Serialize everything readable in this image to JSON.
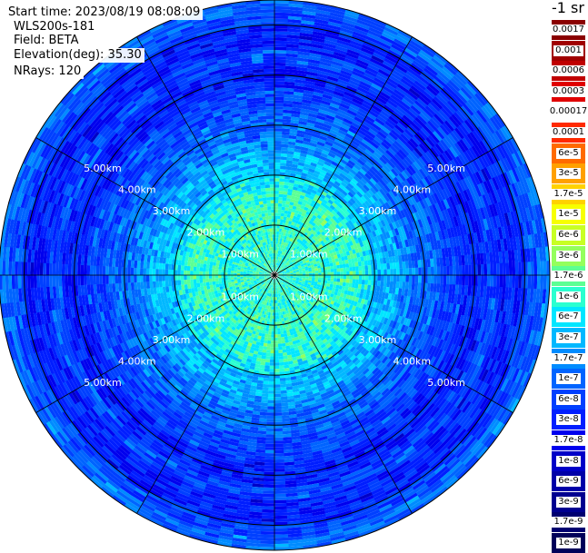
{
  "info": {
    "start_time": "Start time: 2023/08/19 08:08:09",
    "instrument": "WLS200s-181",
    "field": "Field: BETA",
    "elevation": "Elevation(deg): 35.30",
    "nrays": "NRays: 120"
  },
  "colorbar": {
    "unit": "-1 sr",
    "labels": [
      "0.0017",
      "0.001",
      "0.0006",
      "0.0003",
      "0.00017",
      "0.0001",
      "6e-5",
      "3e-5",
      "1.7e-5",
      "1e-5",
      "6e-6",
      "3e-6",
      "1.7e-6",
      "1e-6",
      "6e-7",
      "3e-7",
      "1.7e-7",
      "1e-7",
      "6e-8",
      "3e-8",
      "1.7e-8",
      "1e-8",
      "6e-9",
      "3e-9",
      "1.7e-9",
      "1e-9"
    ],
    "colors": [
      "#8a0000",
      "#a00000",
      "#c00000",
      "#e00000",
      "#ffffff",
      "#ff2a00",
      "#ff6a00",
      "#ffa000",
      "#ffd200",
      "#f7ff00",
      "#c8ff24",
      "#94ff5c",
      "#5cff94",
      "#2affd0",
      "#00e6ff",
      "#00b8ff",
      "#008cff",
      "#0064ff",
      "#0040ff",
      "#001eff",
      "#0000ee",
      "#0000c8",
      "#0000a8",
      "#000090",
      "#000070",
      "#00005a"
    ]
  },
  "chart_data": {
    "type": "heatmap",
    "projection": "polar-ppi",
    "field": "BETA",
    "elevation_deg": 35.3,
    "n_rays": 120,
    "range_unit": "km",
    "range_max_km": 5.5,
    "ring_labels": [
      "1.00km",
      "2.00km",
      "3.00km",
      "4.00km",
      "5.00km"
    ],
    "ring_ranges_km": [
      1,
      2,
      3,
      4,
      5
    ],
    "radial_bins_km": [
      0.25,
      0.5,
      0.75,
      1.0,
      1.25,
      1.5,
      1.75,
      2.0,
      2.25,
      2.5,
      2.75,
      3.0,
      3.25,
      3.5,
      3.75,
      4.0,
      4.25,
      4.5,
      4.75,
      5.0,
      5.25,
      5.5
    ],
    "typical_beta_by_bin": [
      1e-06,
      1e-06,
      1e-06,
      1e-06,
      1e-06,
      1e-06,
      1e-06,
      6e-07,
      3e-07,
      3e-07,
      1.7e-07,
      1e-07,
      1e-07,
      6e-08,
      6e-08,
      3e-08,
      3e-08,
      6e-08,
      3e-08,
      3e-08,
      6e-08,
      1e-07
    ],
    "spokes_deg": [
      0,
      30,
      60,
      90,
      120,
      150,
      180,
      210,
      240,
      270,
      300,
      330
    ],
    "grid": true
  }
}
